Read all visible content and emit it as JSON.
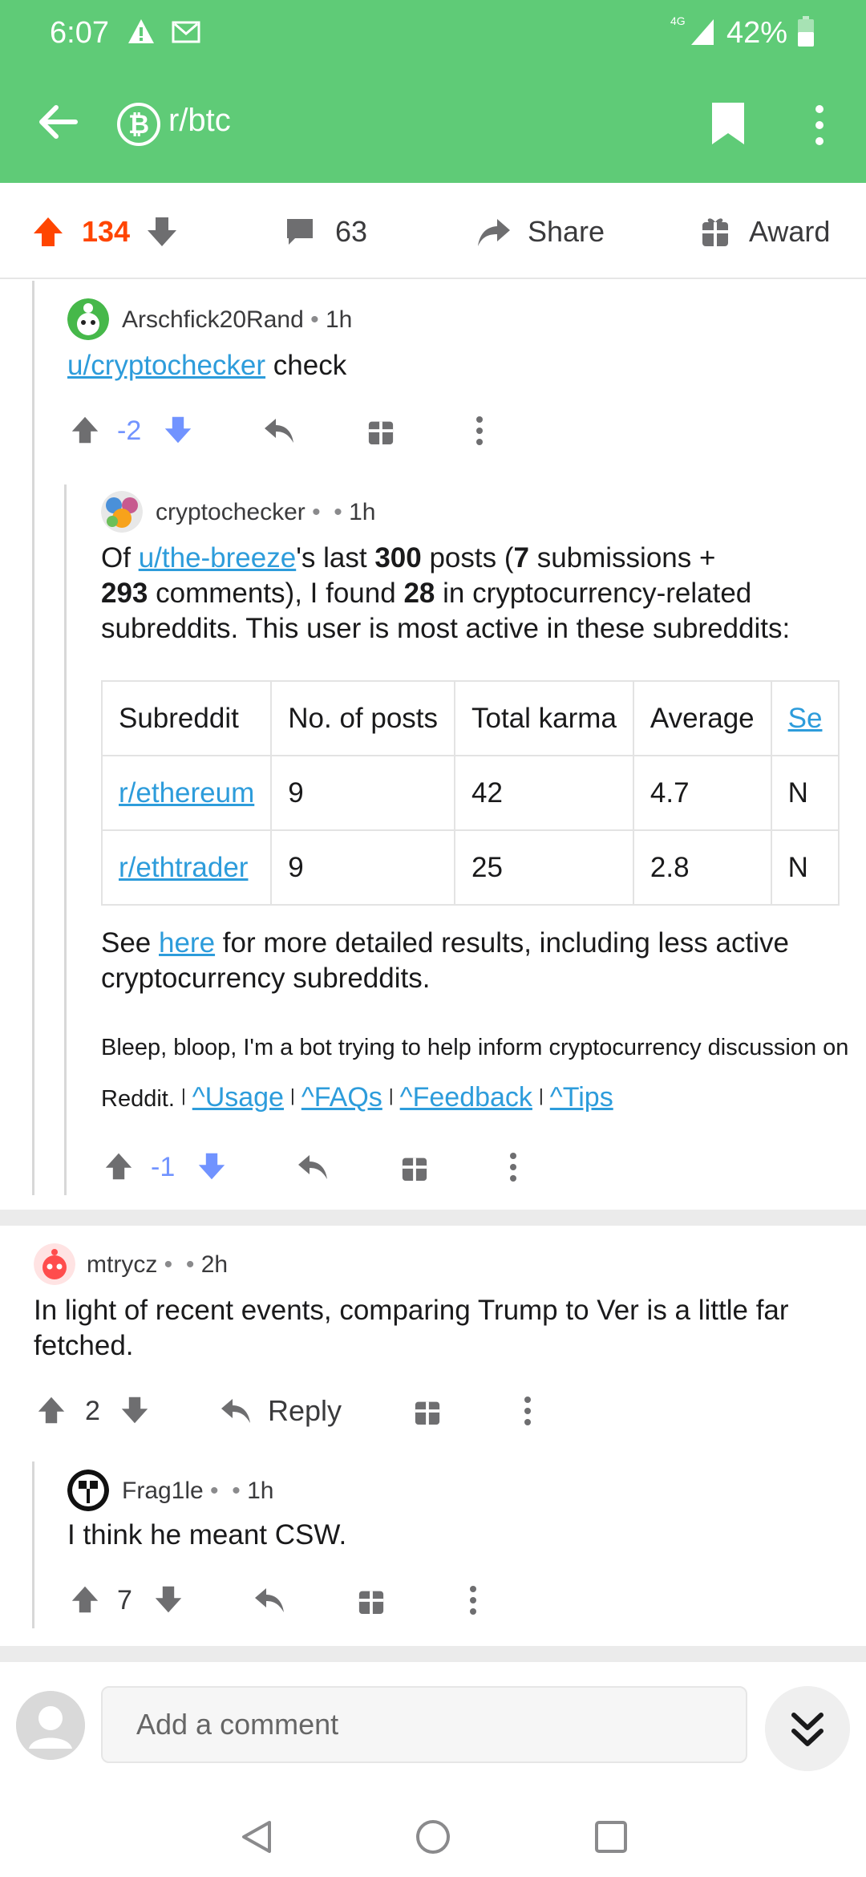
{
  "status": {
    "time": "6:07",
    "network": "4G",
    "battery": "42%"
  },
  "appbar": {
    "subreddit": "r/btc",
    "sub_icon": "₿"
  },
  "post_actions": {
    "score": "134",
    "comments": "63",
    "share": "Share",
    "award": "Award"
  },
  "comments": [
    {
      "author": "Arschfick20Rand",
      "time": "1h",
      "link": "u/cryptochecker",
      "text": " check",
      "score": "-2"
    },
    {
      "author": "cryptochecker",
      "time": "1h",
      "p1": {
        "a": "Of ",
        "link": "u/the-breeze",
        "b": "'s last ",
        "c": "300",
        "d": " posts (",
        "e": "7",
        "f": " submissions +"
      },
      "p2": {
        "a": "293",
        "b": " comments), I found ",
        "c": "28",
        "d": " in cryptocurrency-related"
      },
      "p3": "subreddits. This user is most active in these subreddits:",
      "table": {
        "headers": [
          "Subreddit",
          "No. of posts",
          "Total karma",
          "Average",
          "Se"
        ],
        "rows": [
          [
            "r/ethereum",
            "9",
            "42",
            "4.7",
            "N"
          ],
          [
            "r/ethtrader",
            "9",
            "25",
            "2.8",
            "N"
          ]
        ]
      },
      "see": {
        "a": "See ",
        "link": "here",
        "b": " for more detailed results, including less active",
        "c": "cryptocurrency subreddits."
      },
      "bot_line1": "Bleep, bloop, I'm a bot trying to help inform cryptocurrency discussion on",
      "bot_line2": "Reddit.",
      "bot_links": [
        "^Usage",
        "^FAQs",
        "^Feedback",
        "^Tips"
      ],
      "score": "-1"
    },
    {
      "author": "mtrycz",
      "time": "2h",
      "text1": "In light of recent events, comparing Trump to Ver is a little far",
      "text2": "fetched.",
      "score": "2",
      "reply": "Reply"
    },
    {
      "author": "Frag1le",
      "time": "1h",
      "text": "I think he meant CSW.",
      "score": "7"
    }
  ],
  "composer": {
    "placeholder": "Add a comment"
  },
  "colors": {
    "header": "#5fcb77",
    "upvote": "#ff4500",
    "downvote": "#7193ff",
    "link": "#2d9cdb"
  }
}
